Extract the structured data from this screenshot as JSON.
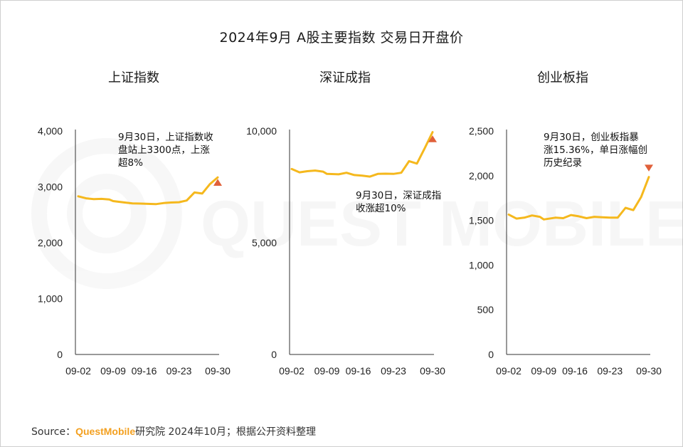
{
  "title": "2024年9月 A股主要指数 交易日开盘价",
  "source": {
    "prefix": "Source：",
    "brand": "QuestMobile",
    "suffix": "研究院 2024年10月；根据公开资料整理"
  },
  "watermark": {
    "text": "QUEST MOBILE"
  },
  "colors": {
    "line": "#f5b81d",
    "marker": "#e0603a",
    "axis": "#333333",
    "brand": "#f3a020"
  },
  "chart_data": [
    {
      "type": "line",
      "title": "上证指数",
      "xlabel": "",
      "ylabel": "",
      "x_ticks": [
        "09-02",
        "09-09",
        "09-16",
        "09-23",
        "09-30"
      ],
      "ylim": [
        0,
        4000
      ],
      "y_ticks": [
        "0",
        "1,000",
        "2,000",
        "3,000",
        "4,000"
      ],
      "y_tick_values": [
        0,
        1000,
        2000,
        3000,
        4000
      ],
      "series": [
        {
          "dates": [
            "09-02",
            "09-03",
            "09-04",
            "09-05",
            "09-06",
            "09-09",
            "09-10",
            "09-11",
            "09-12",
            "09-13",
            "09-18",
            "09-19",
            "09-20",
            "09-23",
            "09-24",
            "09-25",
            "09-26",
            "09-27",
            "09-30"
          ],
          "values": [
            2830,
            2795,
            2780,
            2785,
            2775,
            2745,
            2720,
            2705,
            2700,
            2695,
            2690,
            2710,
            2720,
            2725,
            2755,
            2900,
            2880,
            3050,
            3170
          ]
        }
      ],
      "marker": {
        "type": "triangle-up",
        "date": "09-30",
        "value": 3080
      },
      "annotation": "9月30日，上证指数收\n盘站上3300点，上涨\n超8%"
    },
    {
      "type": "line",
      "title": "深证成指",
      "xlabel": "",
      "ylabel": "",
      "x_ticks": [
        "09-02",
        "09-09",
        "09-16",
        "09-23",
        "09-30"
      ],
      "ylim": [
        0,
        10000
      ],
      "y_ticks": [
        "0",
        "5,000",
        "10,000"
      ],
      "y_tick_values": [
        0,
        5000,
        10000
      ],
      "series": [
        {
          "dates": [
            "09-02",
            "09-03",
            "09-04",
            "09-05",
            "09-06",
            "09-09",
            "09-10",
            "09-11",
            "09-12",
            "09-13",
            "09-18",
            "09-19",
            "09-20",
            "09-23",
            "09-24",
            "09-25",
            "09-26",
            "09-27",
            "09-30"
          ],
          "values": [
            8300,
            8150,
            8200,
            8230,
            8180,
            8080,
            8060,
            8130,
            8030,
            8000,
            7960,
            8080,
            8090,
            8080,
            8130,
            8650,
            8540,
            9230,
            9950
          ]
        }
      ],
      "marker": {
        "type": "triangle-up",
        "date": "09-30",
        "value": 9650
      },
      "annotation": "9月30日，深证成指\n收涨超10%"
    },
    {
      "type": "line",
      "title": "创业板指",
      "xlabel": "",
      "ylabel": "",
      "x_ticks": [
        "09-02",
        "09-09",
        "09-16",
        "09-23",
        "09-30"
      ],
      "ylim": [
        0,
        2500
      ],
      "y_ticks": [
        "0",
        "500",
        "1,000",
        "1,500",
        "2,000",
        "2,500"
      ],
      "y_tick_values": [
        0,
        500,
        1000,
        1500,
        2000,
        2500
      ],
      "series": [
        {
          "dates": [
            "09-02",
            "09-03",
            "09-04",
            "09-05",
            "09-06",
            "09-09",
            "09-10",
            "09-11",
            "09-12",
            "09-13",
            "09-18",
            "09-19",
            "09-20",
            "09-23",
            "09-24",
            "09-25",
            "09-26",
            "09-27",
            "09-30"
          ],
          "values": [
            1565,
            1520,
            1530,
            1555,
            1540,
            1510,
            1530,
            1525,
            1560,
            1545,
            1525,
            1540,
            1535,
            1530,
            1530,
            1640,
            1615,
            1760,
            1985
          ]
        }
      ],
      "marker": {
        "type": "triangle-down",
        "date": "09-30",
        "value": 2085
      },
      "annotation": "9月30日，创业板指暴\n涨15.36%，单日涨幅创\n历史纪录"
    }
  ]
}
